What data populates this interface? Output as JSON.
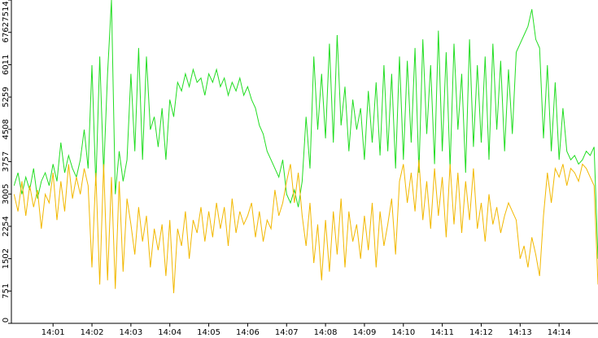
{
  "chart_data": {
    "type": "line",
    "x": [
      0,
      0.1,
      0.2,
      0.3,
      0.4,
      0.5,
      0.6,
      0.7,
      0.8,
      0.9,
      1,
      1.1,
      1.2,
      1.3,
      1.4,
      1.5,
      1.6,
      1.7,
      1.8,
      1.9,
      2,
      2.1,
      2.2,
      2.3,
      2.4,
      2.5,
      2.6,
      2.7,
      2.8,
      2.9,
      3,
      3.1,
      3.2,
      3.3,
      3.4,
      3.5,
      3.6,
      3.7,
      3.8,
      3.9,
      4,
      4.1,
      4.2,
      4.3,
      4.4,
      4.5,
      4.6,
      4.7,
      4.8,
      4.9,
      5,
      5.1,
      5.2,
      5.3,
      5.4,
      5.5,
      5.6,
      5.7,
      5.8,
      5.9,
      6,
      6.1,
      6.2,
      6.3,
      6.4,
      6.5,
      6.6,
      6.7,
      6.8,
      6.9,
      7,
      7.1,
      7.2,
      7.3,
      7.4,
      7.5,
      7.6,
      7.7,
      7.8,
      7.9,
      8,
      8.1,
      8.2,
      8.3,
      8.4,
      8.5,
      8.6,
      8.7,
      8.8,
      8.9,
      9,
      9.1,
      9.2,
      9.3,
      9.4,
      9.5,
      9.6,
      9.7,
      9.8,
      9.9,
      10,
      10.1,
      10.2,
      10.3,
      10.4,
      10.5,
      10.6,
      10.7,
      10.8,
      10.9,
      11,
      11.1,
      11.2,
      11.3,
      11.4,
      11.5,
      11.6,
      11.7,
      11.8,
      11.9,
      12,
      12.1,
      12.2,
      12.3,
      12.4,
      12.5,
      12.6,
      12.7,
      12.8,
      12.9,
      13,
      13.1,
      13.2,
      13.3,
      13.4,
      13.5,
      13.6,
      13.7,
      13.8,
      13.9,
      14,
      14.1,
      14.2,
      14.3,
      14.4,
      14.5,
      14.6,
      14.7,
      14.8,
      14.9,
      15
    ],
    "series": [
      {
        "color": "#22dd22",
        "values": [
          3200,
          3500,
          3000,
          3400,
          3100,
          3600,
          2900,
          3300,
          3500,
          3200,
          3700,
          3300,
          4200,
          3500,
          3900,
          3600,
          3400,
          3800,
          4500,
          3600,
          6000,
          3200,
          6200,
          3500,
          5800,
          7514,
          3000,
          4000,
          3300,
          3800,
          5800,
          4000,
          6400,
          3800,
          6200,
          4500,
          4800,
          4100,
          5000,
          3800,
          5200,
          4800,
          5600,
          5400,
          5800,
          5500,
          5900,
          5600,
          5700,
          5300,
          5800,
          5600,
          5900,
          5500,
          5700,
          5300,
          5600,
          5400,
          5700,
          5300,
          5500,
          5200,
          5000,
          4600,
          4400,
          4000,
          3800,
          3600,
          3400,
          3800,
          3000,
          2800,
          3100,
          2700,
          3300,
          4800,
          3600,
          6200,
          4500,
          5800,
          4300,
          6500,
          4200,
          6700,
          4600,
          5500,
          4000,
          5200,
          4500,
          5000,
          3800,
          5400,
          4200,
          5600,
          3900,
          6000,
          4000,
          5800,
          3600,
          6200,
          3800,
          6100,
          4200,
          6400,
          3500,
          6600,
          4400,
          6000,
          3700,
          6800,
          4000,
          6300,
          3600,
          6500,
          4500,
          5800,
          3500,
          6600,
          4100,
          6000,
          4200,
          6200,
          3800,
          6500,
          4500,
          6100,
          4000,
          5900,
          4400,
          6300,
          6500,
          6700,
          6900,
          7300,
          6600,
          6400,
          4300,
          6000,
          4000,
          5600,
          3800,
          5000,
          4000,
          3800,
          3900,
          3700,
          3800,
          4000,
          3900,
          4100,
          1500
        ]
      },
      {
        "color": "#f2b800",
        "values": [
          3000,
          2600,
          3300,
          2500,
          3200,
          2700,
          3100,
          2200,
          3000,
          2800,
          3500,
          2400,
          3300,
          2600,
          3700,
          2900,
          3400,
          3000,
          3600,
          3200,
          1300,
          3500,
          900,
          3700,
          1000,
          3400,
          800,
          3300,
          1200,
          2900,
          2300,
          1600,
          2700,
          1900,
          2500,
          1300,
          2200,
          1700,
          2300,
          1100,
          2400,
          700,
          2200,
          1800,
          2600,
          1500,
          2400,
          2100,
          2700,
          1900,
          2600,
          2000,
          2800,
          2200,
          2700,
          1800,
          2900,
          2100,
          2600,
          2300,
          2500,
          2800,
          2000,
          2600,
          1900,
          2400,
          2200,
          3100,
          2500,
          2800,
          3300,
          3700,
          2800,
          3500,
          2500,
          1800,
          2800,
          1400,
          2300,
          1000,
          2400,
          1200,
          2600,
          1600,
          2900,
          1300,
          2600,
          1900,
          2300,
          1500,
          2500,
          1700,
          2800,
          1300,
          2600,
          1800,
          2300,
          2900,
          1600,
          3300,
          3700,
          2800,
          3500,
          2600,
          3800,
          2400,
          3300,
          2200,
          3600,
          2500,
          3400,
          2000,
          3700,
          2300,
          3500,
          2100,
          3300,
          2400,
          3600,
          2200,
          2800,
          1900,
          3000,
          2300,
          2700,
          2100,
          2500,
          2800,
          2600,
          2400,
          1500,
          1800,
          1300,
          2000,
          1600,
          1100,
          2500,
          3500,
          2800,
          3600,
          3400,
          3700,
          3200,
          3600,
          3500,
          3300,
          3700,
          3600,
          3400,
          3200,
          900
        ]
      }
    ],
    "xlim": [
      -0.07,
      15.0
    ],
    "xticks": [
      {
        "value": 1,
        "label": "14:01"
      },
      {
        "value": 2,
        "label": "14:02"
      },
      {
        "value": 3,
        "label": "14:03"
      },
      {
        "value": 4,
        "label": "14:04"
      },
      {
        "value": 5,
        "label": "14:05"
      },
      {
        "value": 6,
        "label": "14:06"
      },
      {
        "value": 7,
        "label": "14:07"
      },
      {
        "value": 8,
        "label": "14:08"
      },
      {
        "value": 9,
        "label": "14:09"
      },
      {
        "value": 10,
        "label": "14:10"
      },
      {
        "value": 11,
        "label": "14:11"
      },
      {
        "value": 12,
        "label": "14:12"
      },
      {
        "value": 13,
        "label": "14:13"
      },
      {
        "value": 14,
        "label": "14:14"
      }
    ],
    "ylim": [
      0,
      7514
    ],
    "yticks": [
      0,
      751,
      1502,
      2254,
      3005,
      3757,
      4508,
      5259,
      6011,
      6762,
      7514
    ]
  }
}
